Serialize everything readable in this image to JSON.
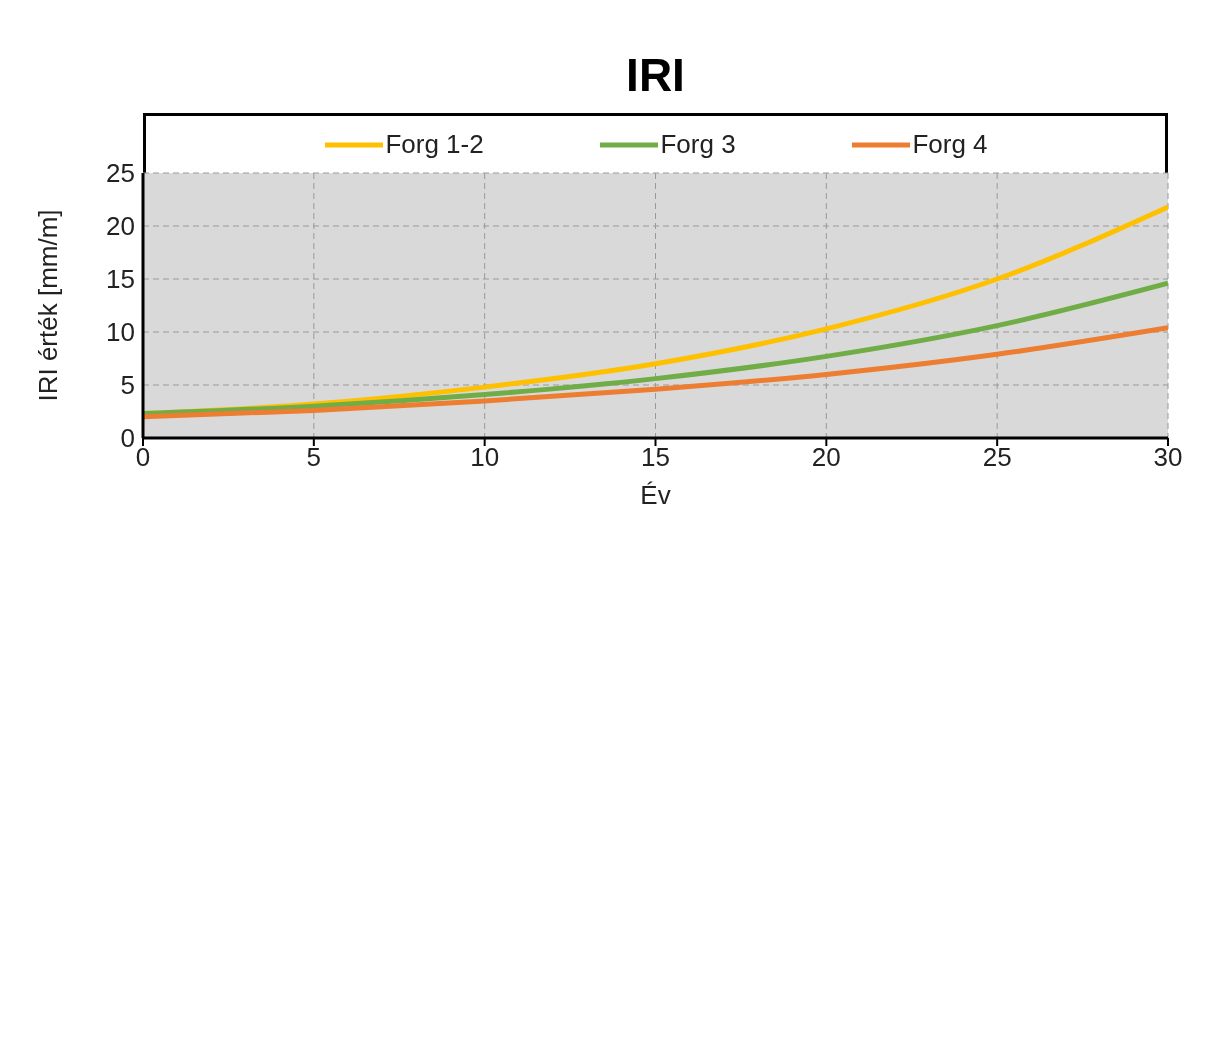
{
  "chart_data": {
    "type": "line",
    "title": "IRI",
    "xlabel": "Év",
    "ylabel": "IRI érték [mm/m]",
    "x": [
      0,
      5,
      10,
      15,
      20,
      25,
      30
    ],
    "series": [
      {
        "name": "Forg 1-2",
        "color": "#ffc000",
        "values": [
          2.3,
          3.2,
          4.8,
          7.0,
          10.3,
          15.0,
          21.8
        ]
      },
      {
        "name": "Forg 3",
        "color": "#70ad47",
        "values": [
          2.3,
          3.0,
          4.1,
          5.6,
          7.7,
          10.6,
          14.6
        ]
      },
      {
        "name": "Forg 4",
        "color": "#ed7d31",
        "values": [
          2.0,
          2.6,
          3.5,
          4.6,
          6.0,
          7.9,
          10.4
        ]
      }
    ],
    "xlim": [
      0,
      30
    ],
    "xticks": [
      0,
      5,
      10,
      15,
      20,
      25,
      30
    ],
    "ylim": [
      0,
      25
    ],
    "yticks": [
      0,
      5,
      10,
      15,
      20,
      25
    ],
    "grid": true,
    "legend": "top",
    "marker": "none",
    "line_style": "solid"
  }
}
